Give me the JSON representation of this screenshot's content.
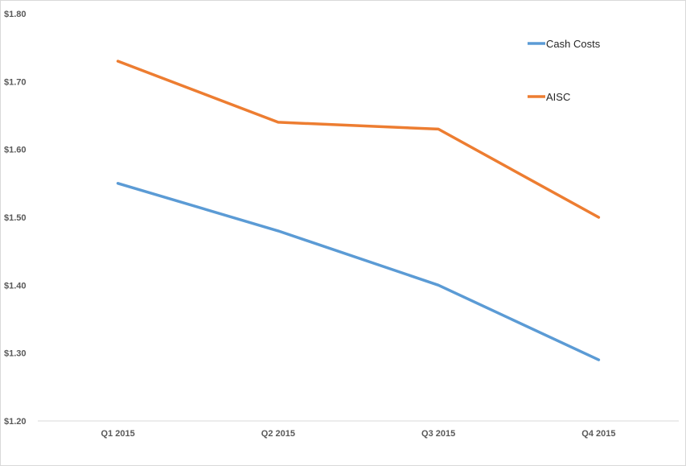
{
  "chart_data": {
    "type": "line",
    "title": "",
    "xlabel": "",
    "ylabel": "",
    "categories": [
      "Q1 2015",
      "Q2 2015",
      "Q3 2015",
      "Q4 2015"
    ],
    "ylim": [
      1.2,
      1.8
    ],
    "y_ticks": [
      "$1.20",
      "$1.30",
      "$1.40",
      "$1.50",
      "$1.60",
      "$1.70",
      "$1.80"
    ],
    "y_tick_values": [
      1.2,
      1.3,
      1.4,
      1.5,
      1.6,
      1.7,
      1.8
    ],
    "grid": false,
    "legend_position": "top-right",
    "series": [
      {
        "name": "Cash Costs",
        "color": "#5B9BD5",
        "values": [
          1.55,
          1.48,
          1.4,
          1.29
        ]
      },
      {
        "name": "AISC",
        "color": "#ED7D31",
        "values": [
          1.73,
          1.64,
          1.63,
          1.5
        ]
      }
    ]
  }
}
